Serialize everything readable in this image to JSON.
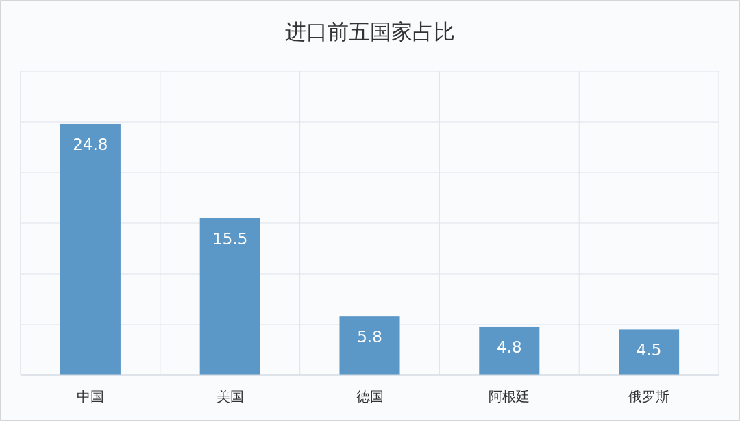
{
  "chart_data": {
    "type": "bar",
    "title": "进口前五国家占比",
    "categories": [
      "中国",
      "美国",
      "德国",
      "阿根廷",
      "俄罗斯"
    ],
    "values": [
      24.8,
      15.5,
      5.8,
      4.8,
      4.5
    ],
    "color": "#5b97c7",
    "ylim": [
      0,
      30
    ],
    "yticks": [
      {
        "value": 0,
        "label": null
      },
      {
        "value": 5,
        "label": null
      },
      {
        "value": 10,
        "label": null
      },
      {
        "value": 15,
        "label": null
      },
      {
        "value": 20,
        "label": null
      },
      {
        "value": 25,
        "label": null
      },
      {
        "value": 30,
        "label": null
      }
    ],
    "tick_labels": "x",
    "grid": true,
    "data_labels": true
  }
}
